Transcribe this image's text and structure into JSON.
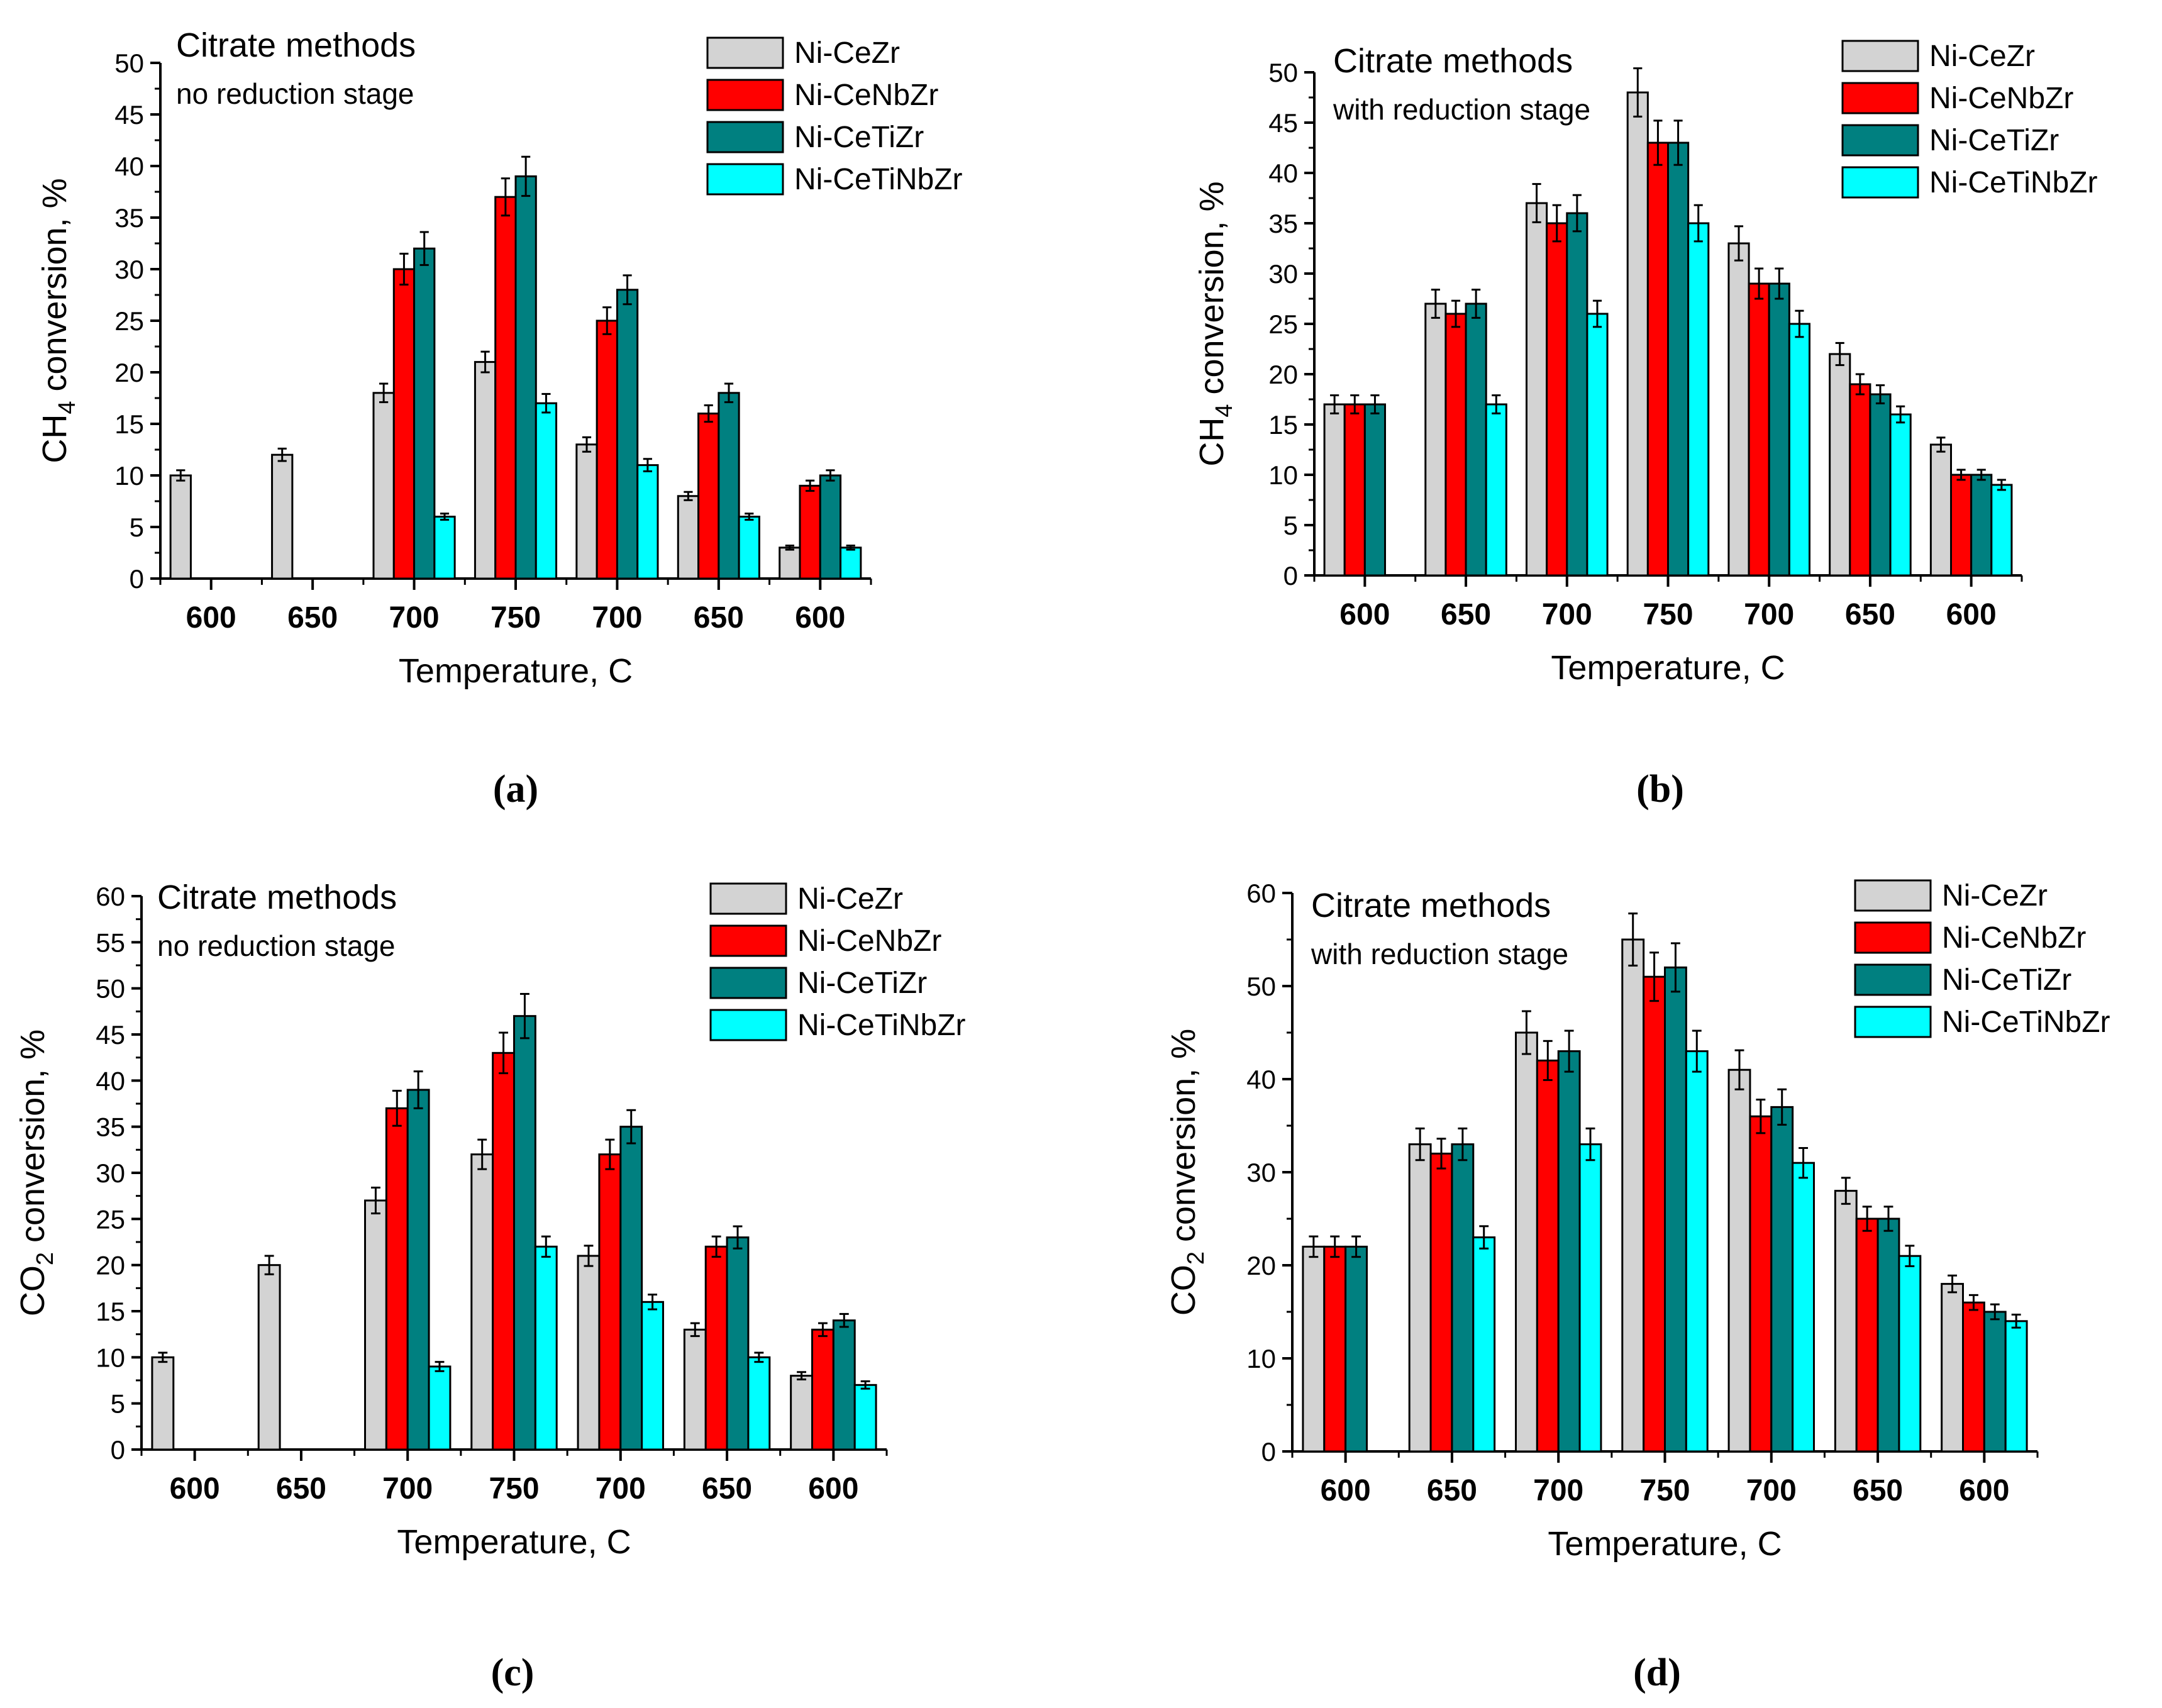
{
  "colors": {
    "Ni-CeZr": "#d3d3d3",
    "Ni-CeNbZr": "#ff0000",
    "Ni-CeTiZr": "#008080",
    "Ni-CeTiNbZr": "#00ffff"
  },
  "chart_data": [
    {
      "id": "a",
      "type": "bar",
      "caption": "(a)",
      "annotation_title": "Citrate methods",
      "annotation_subtitle": "no reduction stage",
      "xlabel": "Temperature, C",
      "ylabel_prefix": "CH",
      "ylabel_sub": "4",
      "ylabel_suffix": " conversion, %",
      "ylim": [
        0,
        50
      ],
      "ytick_step": 5,
      "yticks": [
        "0",
        "5",
        "10",
        "15",
        "20",
        "25",
        "30",
        "35",
        "40",
        "45",
        "50"
      ],
      "categories": [
        "600",
        "650",
        "700",
        "750",
        "700",
        "650",
        "600"
      ],
      "legend": [
        "Ni-CeZr",
        "Ni-CeNbZr",
        "Ni-CeTiZr",
        "Ni-CeTiNbZr"
      ],
      "series": [
        {
          "name": "Ni-CeZr",
          "values": [
            10,
            12,
            18,
            21,
            13,
            8,
            3
          ],
          "errors": [
            0.5,
            0.6,
            0.9,
            1.0,
            0.7,
            0.4,
            0.2
          ]
        },
        {
          "name": "Ni-CeNbZr",
          "values": [
            null,
            null,
            30,
            37,
            25,
            16,
            9
          ],
          "errors": [
            null,
            null,
            1.5,
            1.8,
            1.3,
            0.8,
            0.5
          ]
        },
        {
          "name": "Ni-CeTiZr",
          "values": [
            null,
            null,
            32,
            39,
            28,
            18,
            10
          ],
          "errors": [
            null,
            null,
            1.6,
            1.9,
            1.4,
            0.9,
            0.5
          ]
        },
        {
          "name": "Ni-CeTiNbZr",
          "values": [
            null,
            null,
            6,
            17,
            11,
            6,
            3
          ],
          "errors": [
            null,
            null,
            0.3,
            0.9,
            0.6,
            0.3,
            0.2
          ]
        }
      ]
    },
    {
      "id": "b",
      "type": "bar",
      "caption": "(b)",
      "annotation_title": "Citrate methods",
      "annotation_subtitle": "with reduction stage",
      "xlabel": "Temperature, C",
      "ylabel_prefix": "CH",
      "ylabel_sub": "4",
      "ylabel_suffix": " conversion, %",
      "ylim": [
        0,
        50
      ],
      "ytick_step": 5,
      "yticks": [
        "0",
        "5",
        "10",
        "15",
        "20",
        "25",
        "30",
        "35",
        "40",
        "45",
        "50"
      ],
      "categories": [
        "600",
        "650",
        "700",
        "750",
        "700",
        "650",
        "600"
      ],
      "legend": [
        "Ni-CeZr",
        "Ni-CeNbZr",
        "Ni-CeTiZr",
        "Ni-CeTiNbZr"
      ],
      "series": [
        {
          "name": "Ni-CeZr",
          "values": [
            17,
            27,
            37,
            48,
            33,
            22,
            13
          ],
          "errors": [
            0.9,
            1.4,
            1.9,
            2.4,
            1.7,
            1.1,
            0.7
          ]
        },
        {
          "name": "Ni-CeNbZr",
          "values": [
            17,
            26,
            35,
            43,
            29,
            19,
            10
          ],
          "errors": [
            0.9,
            1.3,
            1.8,
            2.2,
            1.5,
            1.0,
            0.5
          ]
        },
        {
          "name": "Ni-CeTiZr",
          "values": [
            17,
            27,
            36,
            43,
            29,
            18,
            10
          ],
          "errors": [
            0.9,
            1.4,
            1.8,
            2.2,
            1.5,
            0.9,
            0.5
          ]
        },
        {
          "name": "Ni-CeTiNbZr",
          "values": [
            null,
            17,
            26,
            35,
            25,
            16,
            9
          ],
          "errors": [
            null,
            0.9,
            1.3,
            1.8,
            1.3,
            0.8,
            0.5
          ]
        }
      ]
    },
    {
      "id": "c",
      "type": "bar",
      "caption": "(c)",
      "annotation_title": "Citrate methods",
      "annotation_subtitle": "no reduction stage",
      "xlabel": "Temperature, C",
      "ylabel_prefix": "CO",
      "ylabel_sub": "2",
      "ylabel_suffix": " conversion, %",
      "ylim": [
        0,
        60
      ],
      "ytick_step": 5,
      "yticks": [
        "0",
        "5",
        "10",
        "15",
        "20",
        "25",
        "30",
        "35",
        "40",
        "45",
        "50",
        "55",
        "60"
      ],
      "categories": [
        "600",
        "650",
        "700",
        "750",
        "700",
        "650",
        "600"
      ],
      "legend": [
        "Ni-CeZr",
        "Ni-CeNbZr",
        "Ni-CeTiZr",
        "Ni-CeTiNbZr"
      ],
      "series": [
        {
          "name": "Ni-CeZr",
          "values": [
            10,
            20,
            27,
            32,
            21,
            13,
            8
          ],
          "errors": [
            0.5,
            1.0,
            1.4,
            1.6,
            1.1,
            0.7,
            0.4
          ]
        },
        {
          "name": "Ni-CeNbZr",
          "values": [
            null,
            null,
            37,
            43,
            32,
            22,
            13
          ],
          "errors": [
            null,
            null,
            1.9,
            2.2,
            1.6,
            1.1,
            0.7
          ]
        },
        {
          "name": "Ni-CeTiZr",
          "values": [
            null,
            null,
            39,
            47,
            35,
            23,
            14
          ],
          "errors": [
            null,
            null,
            2.0,
            2.4,
            1.8,
            1.2,
            0.7
          ]
        },
        {
          "name": "Ni-CeTiNbZr",
          "values": [
            null,
            null,
            9,
            22,
            16,
            10,
            7
          ],
          "errors": [
            null,
            null,
            0.5,
            1.1,
            0.8,
            0.5,
            0.4
          ]
        }
      ]
    },
    {
      "id": "d",
      "type": "bar",
      "caption": "(d)",
      "annotation_title": "Citrate methods",
      "annotation_subtitle": "with reduction stage",
      "xlabel": "Temperature, C",
      "ylabel_prefix": "CO",
      "ylabel_sub": "2",
      "ylabel_suffix": " conversion, %",
      "ylim": [
        0,
        60
      ],
      "ytick_step": 10,
      "yticks": [
        "0",
        "10",
        "20",
        "30",
        "40",
        "50",
        "60"
      ],
      "categories": [
        "600",
        "650",
        "700",
        "750",
        "700",
        "650",
        "600"
      ],
      "legend": [
        "Ni-CeZr",
        "Ni-CeNbZr",
        "Ni-CeTiZr",
        "Ni-CeTiNbZr"
      ],
      "series": [
        {
          "name": "Ni-CeZr",
          "values": [
            22,
            33,
            45,
            55,
            41,
            28,
            18
          ],
          "errors": [
            1.1,
            1.7,
            2.3,
            2.8,
            2.1,
            1.4,
            0.9
          ]
        },
        {
          "name": "Ni-CeNbZr",
          "values": [
            22,
            32,
            42,
            51,
            36,
            25,
            16
          ],
          "errors": [
            1.1,
            1.6,
            2.1,
            2.6,
            1.8,
            1.3,
            0.8
          ]
        },
        {
          "name": "Ni-CeTiZr",
          "values": [
            22,
            33,
            43,
            52,
            37,
            25,
            15
          ],
          "errors": [
            1.1,
            1.7,
            2.2,
            2.6,
            1.9,
            1.3,
            0.8
          ]
        },
        {
          "name": "Ni-CeTiNbZr",
          "values": [
            null,
            23,
            33,
            43,
            31,
            21,
            14
          ],
          "errors": [
            null,
            1.2,
            1.7,
            2.2,
            1.6,
            1.1,
            0.7
          ]
        }
      ]
    }
  ]
}
